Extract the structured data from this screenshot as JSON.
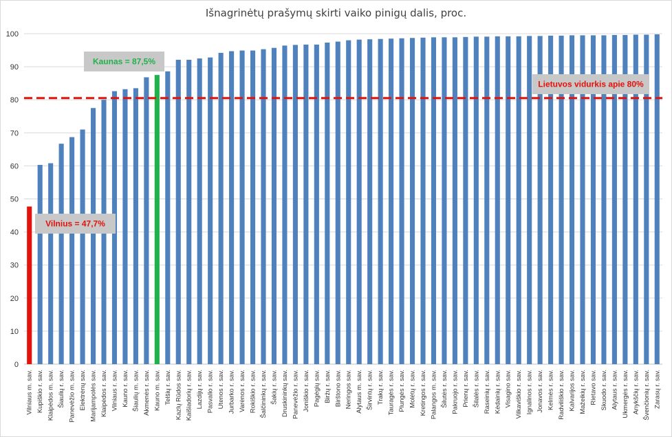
{
  "chart_data": {
    "type": "bar",
    "title": "Išnagrinėtų prašymų skirti vaiko pinigų dalis, proc.",
    "xlabel": "",
    "ylabel": "",
    "ylim": [
      0,
      100
    ],
    "yticks": [
      "0",
      "10",
      "20",
      "30",
      "40",
      "50",
      "60",
      "70",
      "80",
      "90",
      "100"
    ],
    "grid": true,
    "colors": {
      "default_bar": "#4f81bd",
      "vilnius_bar": "#e3120b",
      "kaunas_bar": "#21b14b",
      "average_line": "#e3120b",
      "callout_bg": "#c8c8c8"
    },
    "categories": [
      "Vilniaus m. sav.",
      "Kupiškio r. sav.",
      "Klaipėdos m. sav.",
      "Šiaulių r. sav.",
      "Panevėžio m. sav.",
      "Elektrėnų sav.",
      "Marijampolės sav.",
      "Klaipėdos r. sav.",
      "Vilniaus r. sav.",
      "Kauno r. sav.",
      "Šiaulių m. sav.",
      "Akmenės r. sav.",
      "Kauno m. sav.",
      "Telšių r. sav.",
      "Kazlų Rūdos sav.",
      "Kaišiadorių r. sav.",
      "Lazdijų r. sav.",
      "Pasvalio r. sav.",
      "Utenos r. sav.",
      "Jurbarko r. sav.",
      "Varėnos r. sav.",
      "Rokiškio r. sav.",
      "Šalčininkų r. sav.",
      "Šakių r. sav.",
      "Druskininkų sav.",
      "Panevėžio r. sav.",
      "Joniškio r. sav.",
      "Pagėgių sav.",
      "Biržų r. sav.",
      "Birštono sav.",
      "Neringos sav.",
      "Alytaus m. sav.",
      "Širvintų r. sav.",
      "Trakų r. sav.",
      "Tauragės r. sav.",
      "Plungės r. sav.",
      "Molėtų r. sav.",
      "Kretingos r. sav.",
      "Palangos m. sav.",
      "Šilutės r. sav.",
      "Pakruojo r. sav.",
      "Prienų r. sav.",
      "Šilalės r. sav.",
      "Raseinių r. sav.",
      "Kėdainių r. sav.",
      "Visagino sav.",
      "Vilkaviškio r. sav.",
      "Ignalinos r. sav.",
      "Jonavos r. sav.",
      "Kelmės r. sav.",
      "Radviliškio r. sav.",
      "Kalvarijos sav.",
      "Mažeikių r. sav.",
      "Rietavo sav.",
      "Skuodo r. sav.",
      "Alytaus r. sav.",
      "Ukmergės r. sav.",
      "Anykščių r. sav.",
      "Švenčionių r. sav.",
      "Zarasų r. sav."
    ],
    "values": [
      47.7,
      60.3,
      60.8,
      66.7,
      68.7,
      71.0,
      77.5,
      80.0,
      82.6,
      83.2,
      83.5,
      86.8,
      87.5,
      88.6,
      92.1,
      92.1,
      92.5,
      92.8,
      94.2,
      94.7,
      94.9,
      94.9,
      95.3,
      95.7,
      96.4,
      96.6,
      96.7,
      96.7,
      97.3,
      97.6,
      98.0,
      98.2,
      98.3,
      98.4,
      98.5,
      98.6,
      98.7,
      98.8,
      98.9,
      98.9,
      98.9,
      99.0,
      99.1,
      99.1,
      99.2,
      99.2,
      99.2,
      99.3,
      99.3,
      99.4,
      99.4,
      99.5,
      99.5,
      99.5,
      99.5,
      99.6,
      99.6,
      99.7,
      99.7,
      99.8
    ],
    "highlight_index": {
      "vilnius": 0,
      "kaunas": 12
    },
    "average_line": {
      "value": 80.5,
      "label": "Lietuvos vidurkis apie 80%"
    },
    "annotations": [
      {
        "text": "Kaunas = 87,5%",
        "color": "#21b14b"
      },
      {
        "text": "Vilnius = 47,7%",
        "color": "#e3120b"
      }
    ]
  }
}
